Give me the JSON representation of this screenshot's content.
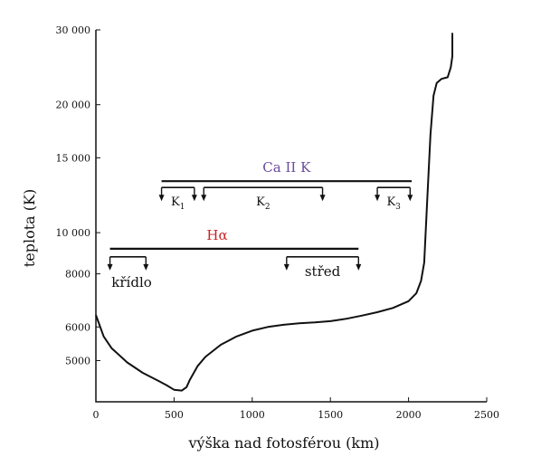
{
  "chart_data": {
    "type": "line",
    "title": "",
    "xlabel": "výška nad fotosférou (km)",
    "ylabel": "teplota (K)",
    "xlim": [
      0,
      2500
    ],
    "ylim": [
      4000,
      30000
    ],
    "yscale": "log",
    "x_ticks": [
      0,
      500,
      1000,
      1500,
      2000,
      2500
    ],
    "x_tick_labels": [
      "0",
      "500",
      "1000",
      "1500",
      "2000",
      "2500"
    ],
    "y_ticks": [
      5000,
      6000,
      8000,
      10000,
      15000,
      20000,
      30000
    ],
    "y_tick_labels": [
      "5000",
      "6000",
      "8000",
      "10 000",
      "15 000",
      "20 000",
      "30 000"
    ],
    "grid": false,
    "series": [
      {
        "color": "#111111",
        "points": [
          [
            0,
            6400
          ],
          [
            50,
            5700
          ],
          [
            100,
            5350
          ],
          [
            200,
            4950
          ],
          [
            300,
            4680
          ],
          [
            400,
            4480
          ],
          [
            450,
            4380
          ],
          [
            500,
            4270
          ],
          [
            550,
            4250
          ],
          [
            580,
            4330
          ],
          [
            600,
            4500
          ],
          [
            650,
            4850
          ],
          [
            700,
            5100
          ],
          [
            800,
            5450
          ],
          [
            900,
            5700
          ],
          [
            1000,
            5880
          ],
          [
            1100,
            6000
          ],
          [
            1200,
            6070
          ],
          [
            1300,
            6120
          ],
          [
            1400,
            6150
          ],
          [
            1500,
            6190
          ],
          [
            1600,
            6270
          ],
          [
            1700,
            6380
          ],
          [
            1800,
            6500
          ],
          [
            1900,
            6650
          ],
          [
            2000,
            6900
          ],
          [
            2050,
            7200
          ],
          [
            2080,
            7700
          ],
          [
            2100,
            8500
          ],
          [
            2120,
            12000
          ],
          [
            2140,
            17000
          ],
          [
            2160,
            21000
          ],
          [
            2180,
            22500
          ],
          [
            2210,
            23000
          ],
          [
            2250,
            23200
          ],
          [
            2270,
            24500
          ],
          [
            2280,
            26000
          ],
          [
            2280,
            29500
          ]
        ]
      }
    ],
    "annotations": {
      "ca": {
        "title": "Ca II K",
        "title_color": "#6a4c9c",
        "range": [
          420,
          2020
        ],
        "level": 12100,
        "segments": [
          {
            "label": "K",
            "sub": "1",
            "range": [
              420,
              630
            ]
          },
          {
            "label": "K",
            "sub": "2",
            "range": [
              690,
              1450
            ]
          },
          {
            "label": "K",
            "sub": "3",
            "range": [
              1800,
              2010
            ]
          }
        ]
      },
      "ha": {
        "title": "Hα",
        "title_color": "#cc2222",
        "range": [
          90,
          1680
        ],
        "level": 8600,
        "segments": [
          {
            "label": "křídlo",
            "range": [
              90,
              320
            ]
          },
          {
            "label": "střed",
            "range": [
              1220,
              1680
            ]
          }
        ]
      }
    }
  }
}
